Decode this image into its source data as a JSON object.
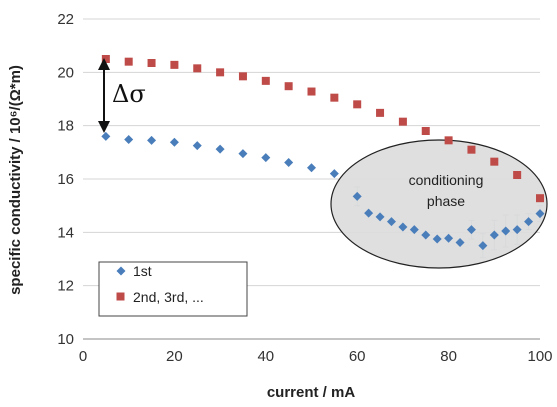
{
  "chart_data": {
    "type": "scatter",
    "xlabel": "current / mA",
    "ylabel": "specific conductivity / 10⁶/(Ω*m)",
    "xlim": [
      0,
      100
    ],
    "ylim": [
      10,
      22
    ],
    "xticks": [
      0,
      20,
      40,
      60,
      80,
      100
    ],
    "yticks": [
      10,
      12,
      14,
      16,
      18,
      20,
      22
    ],
    "grid": "horizontal",
    "legend_position": "bottom-left",
    "series": [
      {
        "name": "1st",
        "marker": "diamond",
        "color": "#4a7ebb",
        "x": [
          5,
          10,
          15,
          20,
          25,
          30,
          35,
          40,
          45,
          50,
          55,
          60,
          62.5,
          65,
          67.5,
          70,
          72.5,
          75,
          77.5,
          80,
          82.5,
          85,
          87.5,
          90,
          92.5,
          95,
          97.5,
          100
        ],
        "y": [
          17.6,
          17.48,
          17.45,
          17.38,
          17.25,
          17.12,
          16.95,
          16.8,
          16.62,
          16.42,
          16.2,
          15.35,
          14.72,
          14.58,
          14.4,
          14.2,
          14.1,
          13.9,
          13.75,
          13.78,
          13.62,
          14.1,
          13.5,
          13.9,
          14.05,
          14.1,
          14.4,
          14.7
        ],
        "error": [
          0,
          0,
          0,
          0,
          0,
          0,
          0,
          0,
          0,
          0,
          0,
          0.35,
          0,
          0,
          0,
          0,
          0,
          0,
          0,
          0,
          0,
          0.35,
          0.45,
          0.55,
          0.6,
          0.55,
          0.3,
          0.3
        ]
      },
      {
        "name": "2nd, 3rd, ...",
        "marker": "square",
        "color": "#be4b48",
        "x": [
          5,
          10,
          15,
          20,
          25,
          30,
          35,
          40,
          45,
          50,
          55,
          60,
          65,
          70,
          75,
          80,
          85,
          90,
          95,
          100
        ],
        "y": [
          20.5,
          20.4,
          20.35,
          20.28,
          20.15,
          20.0,
          19.85,
          19.68,
          19.48,
          19.28,
          19.05,
          18.8,
          18.48,
          18.15,
          17.8,
          17.45,
          17.1,
          16.65,
          16.15,
          15.28
        ]
      }
    ],
    "annotations": {
      "delta_label": "Δσ",
      "ellipse_label_line1": "conditioning",
      "ellipse_label_line2": "phase"
    }
  }
}
